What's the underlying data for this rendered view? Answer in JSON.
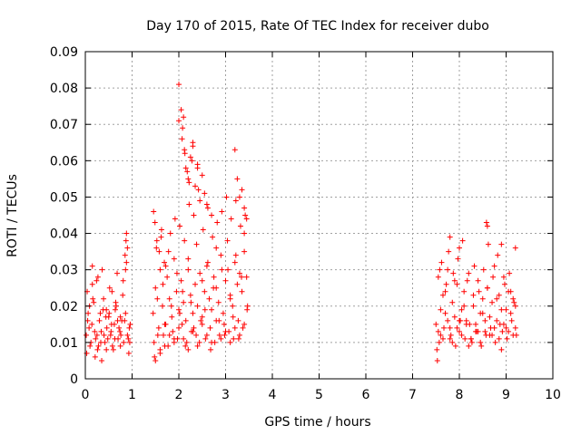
{
  "chart_data": {
    "type": "scatter",
    "title": "Day 170 of 2015, Rate Of TEC Index for receiver dubo",
    "xlabel": "GPS time / hours",
    "ylabel": "ROTI / TECUs",
    "xlim": [
      0,
      10
    ],
    "ylim": [
      0,
      0.09
    ],
    "xticks": [
      "0",
      "1",
      "2",
      "3",
      "4",
      "5",
      "6",
      "7",
      "8",
      "9",
      "10"
    ],
    "yticks": [
      "0",
      "0.01",
      "0.02",
      "0.03",
      "0.04",
      "0.05",
      "0.06",
      "0.07",
      "0.08",
      "0.09"
    ],
    "grid": true,
    "marker": "+",
    "color": "#ff0000",
    "series": [
      {
        "name": "ROTI",
        "x": [
          0.02,
          0.06,
          0.1,
          0.14,
          0.18,
          0.22,
          0.26,
          0.3,
          0.34,
          0.38,
          0.42,
          0.46,
          0.5,
          0.54,
          0.58,
          0.62,
          0.66,
          0.7,
          0.74,
          0.78,
          0.82,
          0.86,
          0.9,
          0.94,
          0.04,
          0.08,
          0.12,
          0.16,
          0.2,
          0.24,
          0.28,
          0.32,
          0.36,
          0.4,
          0.44,
          0.48,
          0.52,
          0.56,
          0.6,
          0.64,
          0.68,
          0.72,
          0.76,
          0.8,
          0.84,
          0.88,
          0.92,
          0.96,
          0.03,
          0.09,
          0.15,
          0.21,
          0.27,
          0.33,
          0.39,
          0.45,
          0.51,
          0.57,
          0.63,
          0.69,
          0.75,
          0.81,
          0.87,
          0.93,
          0.05,
          0.15,
          0.25,
          0.35,
          0.45,
          0.55,
          0.65,
          0.75,
          0.85,
          0.95,
          0.88,
          0.9,
          0.86,
          1.45,
          1.5,
          1.55,
          1.6,
          1.65,
          1.7,
          1.75,
          1.8,
          1.85,
          1.9,
          1.95,
          2.0,
          2.05,
          2.1,
          2.15,
          2.2,
          2.25,
          2.3,
          2.35,
          2.4,
          2.45,
          2.5,
          2.55,
          2.6,
          2.65,
          2.7,
          2.75,
          2.8,
          2.85,
          2.9,
          2.95,
          3.0,
          3.05,
          3.1,
          3.15,
          3.2,
          3.25,
          3.3,
          3.35,
          3.4,
          3.45,
          1.47,
          1.52,
          1.57,
          1.62,
          1.67,
          1.72,
          1.77,
          1.82,
          1.87,
          1.92,
          1.97,
          2.02,
          2.07,
          2.12,
          2.17,
          2.22,
          2.27,
          2.32,
          2.37,
          2.42,
          2.47,
          2.52,
          2.57,
          2.62,
          2.67,
          2.72,
          2.77,
          2.82,
          2.87,
          2.92,
          2.97,
          3.02,
          3.07,
          3.12,
          3.17,
          3.22,
          3.27,
          3.32,
          3.37,
          3.42,
          3.47,
          1.48,
          1.54,
          1.6,
          1.66,
          1.72,
          1.78,
          1.84,
          1.9,
          1.96,
          2.02,
          2.08,
          2.14,
          2.2,
          2.26,
          2.32,
          2.38,
          2.44,
          2.5,
          2.56,
          2.62,
          2.68,
          2.74,
          2.8,
          2.86,
          2.92,
          2.98,
          3.04,
          3.1,
          3.16,
          3.22,
          3.28,
          3.34,
          3.4,
          3.46,
          1.5,
          1.6,
          1.7,
          1.8,
          1.9,
          2.0,
          2.1,
          2.2,
          2.3,
          2.4,
          2.5,
          2.6,
          2.7,
          2.8,
          2.9,
          3.0,
          3.1,
          3.2,
          3.3,
          3.4,
          1.46,
          1.49,
          1.53,
          1.58,
          1.63,
          1.69,
          2.0,
          2.05,
          2.08,
          2.1,
          2.12,
          2.15,
          2.2,
          2.25,
          2.3,
          2.35,
          2.4,
          2.45,
          2.5,
          2.55,
          2.0,
          2.07,
          2.13,
          2.18,
          2.22,
          2.28,
          2.3,
          2.4,
          3.2,
          3.25,
          3.3,
          3.35,
          3.4,
          3.45,
          2.6,
          2.7,
          7.5,
          7.55,
          7.6,
          7.65,
          7.7,
          7.75,
          7.8,
          7.85,
          7.9,
          7.95,
          8.0,
          8.05,
          8.1,
          8.15,
          8.2,
          8.25,
          8.3,
          8.35,
          8.4,
          8.45,
          8.5,
          8.55,
          8.6,
          8.65,
          8.7,
          8.75,
          8.8,
          8.85,
          8.9,
          8.95,
          9.0,
          9.05,
          9.1,
          9.15,
          9.2,
          7.52,
          7.57,
          7.62,
          7.67,
          7.72,
          7.77,
          7.82,
          7.87,
          7.92,
          7.97,
          8.02,
          8.07,
          8.12,
          8.17,
          8.22,
          8.27,
          8.32,
          8.37,
          8.42,
          8.47,
          8.52,
          8.57,
          8.62,
          8.67,
          8.72,
          8.77,
          8.82,
          8.87,
          8.92,
          8.97,
          9.02,
          9.07,
          9.12,
          9.17,
          9.22,
          7.53,
          7.6,
          7.7,
          7.8,
          7.9,
          8.0,
          8.1,
          8.2,
          8.3,
          8.4,
          8.5,
          8.6,
          8.7,
          8.8,
          8.9,
          9.0,
          9.1,
          9.2,
          7.55,
          7.65,
          7.75,
          7.85,
          7.95,
          8.05,
          8.15,
          8.25,
          8.35,
          8.45,
          8.55,
          8.65,
          8.75,
          8.85,
          8.95,
          9.05,
          9.15,
          7.58,
          7.8,
          8.0,
          8.58,
          8.6,
          8.9,
          9.2
        ],
        "y": [
          0.012,
          0.018,
          0.009,
          0.015,
          0.021,
          0.011,
          0.008,
          0.016,
          0.013,
          0.019,
          0.01,
          0.014,
          0.017,
          0.012,
          0.009,
          0.015,
          0.02,
          0.011,
          0.013,
          0.016,
          0.01,
          0.018,
          0.012,
          0.014,
          0.024,
          0.014,
          0.01,
          0.022,
          0.013,
          0.027,
          0.009,
          0.018,
          0.03,
          0.012,
          0.017,
          0.011,
          0.025,
          0.015,
          0.008,
          0.019,
          0.029,
          0.014,
          0.012,
          0.023,
          0.016,
          0.032,
          0.011,
          0.015,
          0.007,
          0.02,
          0.026,
          0.006,
          0.028,
          0.01,
          0.022,
          0.008,
          0.018,
          0.024,
          0.011,
          0.016,
          0.009,
          0.027,
          0.038,
          0.007,
          0.016,
          0.031,
          0.012,
          0.005,
          0.019,
          0.013,
          0.021,
          0.017,
          0.034,
          0.01,
          0.04,
          0.036,
          0.03,
          0.018,
          0.025,
          0.012,
          0.03,
          0.02,
          0.015,
          0.028,
          0.022,
          0.017,
          0.033,
          0.024,
          0.019,
          0.027,
          0.021,
          0.016,
          0.03,
          0.023,
          0.018,
          0.026,
          0.02,
          0.029,
          0.017,
          0.024,
          0.031,
          0.022,
          0.019,
          0.028,
          0.025,
          0.021,
          0.034,
          0.018,
          0.027,
          0.03,
          0.023,
          0.02,
          0.032,
          0.026,
          0.029,
          0.024,
          0.035,
          0.028,
          0.01,
          0.036,
          0.014,
          0.039,
          0.012,
          0.031,
          0.009,
          0.04,
          0.013,
          0.044,
          0.011,
          0.042,
          0.015,
          0.038,
          0.01,
          0.048,
          0.013,
          0.045,
          0.012,
          0.052,
          0.016,
          0.041,
          0.011,
          0.047,
          0.014,
          0.039,
          0.01,
          0.043,
          0.012,
          0.046,
          0.015,
          0.05,
          0.013,
          0.044,
          0.011,
          0.049,
          0.016,
          0.042,
          0.014,
          0.045,
          0.02,
          0.006,
          0.022,
          0.008,
          0.026,
          0.015,
          0.035,
          0.02,
          0.011,
          0.029,
          0.018,
          0.024,
          0.009,
          0.033,
          0.021,
          0.014,
          0.037,
          0.01,
          0.027,
          0.019,
          0.032,
          0.008,
          0.025,
          0.036,
          0.016,
          0.03,
          0.012,
          0.038,
          0.022,
          0.017,
          0.034,
          0.011,
          0.028,
          0.04,
          0.019,
          0.005,
          0.007,
          0.009,
          0.012,
          0.01,
          0.014,
          0.011,
          0.008,
          0.013,
          0.009,
          0.015,
          0.012,
          0.01,
          0.016,
          0.011,
          0.013,
          0.01,
          0.014,
          0.012,
          0.015,
          0.046,
          0.043,
          0.038,
          0.035,
          0.041,
          0.032,
          0.081,
          0.074,
          0.069,
          0.072,
          0.063,
          0.058,
          0.055,
          0.061,
          0.065,
          0.053,
          0.059,
          0.049,
          0.056,
          0.051,
          0.071,
          0.066,
          0.062,
          0.057,
          0.054,
          0.06,
          0.064,
          0.058,
          0.063,
          0.055,
          0.05,
          0.052,
          0.047,
          0.044,
          0.048,
          0.045,
          0.015,
          0.028,
          0.012,
          0.023,
          0.018,
          0.03,
          0.014,
          0.021,
          0.017,
          0.026,
          0.013,
          0.019,
          0.024,
          0.016,
          0.029,
          0.011,
          0.02,
          0.015,
          0.027,
          0.018,
          0.022,
          0.013,
          0.025,
          0.017,
          0.021,
          0.031,
          0.016,
          0.023,
          0.019,
          0.028,
          0.014,
          0.024,
          0.018,
          0.022,
          0.02,
          0.008,
          0.01,
          0.032,
          0.014,
          0.026,
          0.035,
          0.012,
          0.029,
          0.009,
          0.033,
          0.016,
          0.038,
          0.011,
          0.027,
          0.015,
          0.01,
          0.031,
          0.013,
          0.024,
          0.009,
          0.03,
          0.012,
          0.037,
          0.014,
          0.028,
          0.01,
          0.034,
          0.015,
          0.013,
          0.026,
          0.011,
          0.029,
          0.016,
          0.021,
          0.012,
          0.005,
          0.019,
          0.024,
          0.011,
          0.027,
          0.016,
          0.02,
          0.009,
          0.023,
          0.013,
          0.018,
          0.025,
          0.012,
          0.022,
          0.008,
          0.019,
          0.024,
          0.014,
          0.013,
          0.011,
          0.016,
          0.01,
          0.014,
          0.012,
          0.015,
          0.011,
          0.013,
          0.01,
          0.016,
          0.012,
          0.014,
          0.011,
          0.015,
          0.013,
          0.012,
          0.03,
          0.039,
          0.036,
          0.043,
          0.042,
          0.037,
          0.036
        ]
      }
    ]
  }
}
